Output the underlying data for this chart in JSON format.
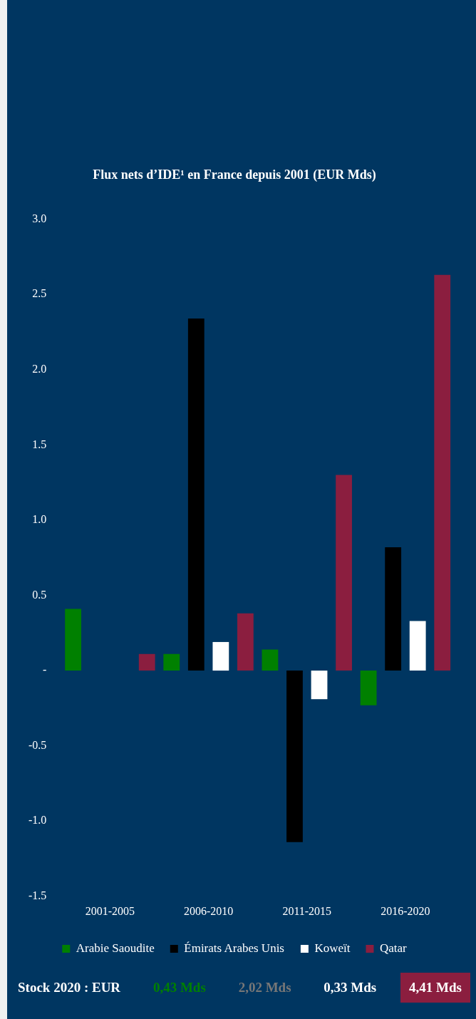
{
  "chart_data": {
    "type": "bar",
    "title": "Flux nets d’IDE¹ en France depuis 2001 (EUR Mds)",
    "categories": [
      "2001-2005",
      "2006-2010",
      "2011-2015",
      "2016-2020"
    ],
    "series": [
      {
        "name": "Arabie Saoudite",
        "color": "#008000",
        "values": [
          0.41,
          0.11,
          0.14,
          -0.23
        ]
      },
      {
        "name": "Émirats Arabes Unis",
        "color": "#000000",
        "values": [
          null,
          2.34,
          -1.14,
          0.82
        ]
      },
      {
        "name": "Koweït",
        "color": "#ffffff",
        "values": [
          null,
          0.19,
          -0.19,
          0.33
        ]
      },
      {
        "name": "Qatar",
        "color": "#8b1e3f",
        "values": [
          0.11,
          0.38,
          1.3,
          2.63
        ]
      }
    ],
    "ylim": [
      -1.5,
      3.0
    ],
    "yticks": [
      {
        "value": -1.5,
        "label": "-1.5"
      },
      {
        "value": -1,
        "label": "-1.0"
      },
      {
        "value": -0.5,
        "label": "-0.5"
      },
      {
        "value": 0,
        "label": "-"
      },
      {
        "value": 0.5,
        "label": "0.5"
      },
      {
        "value": 1,
        "label": "1.0"
      },
      {
        "value": 1.5,
        "label": "1.5"
      },
      {
        "value": 2,
        "label": "2.0"
      },
      {
        "value": 2.5,
        "label": "2.5"
      },
      {
        "value": 3,
        "label": "3.0"
      }
    ],
    "grid": false,
    "legend": "bottom",
    "annotations": [
      "Stock 2020 : EUR",
      "0,43 Mds",
      "2,02 Mds",
      "0,33 Mds",
      "4,41 Mds"
    ]
  }
}
